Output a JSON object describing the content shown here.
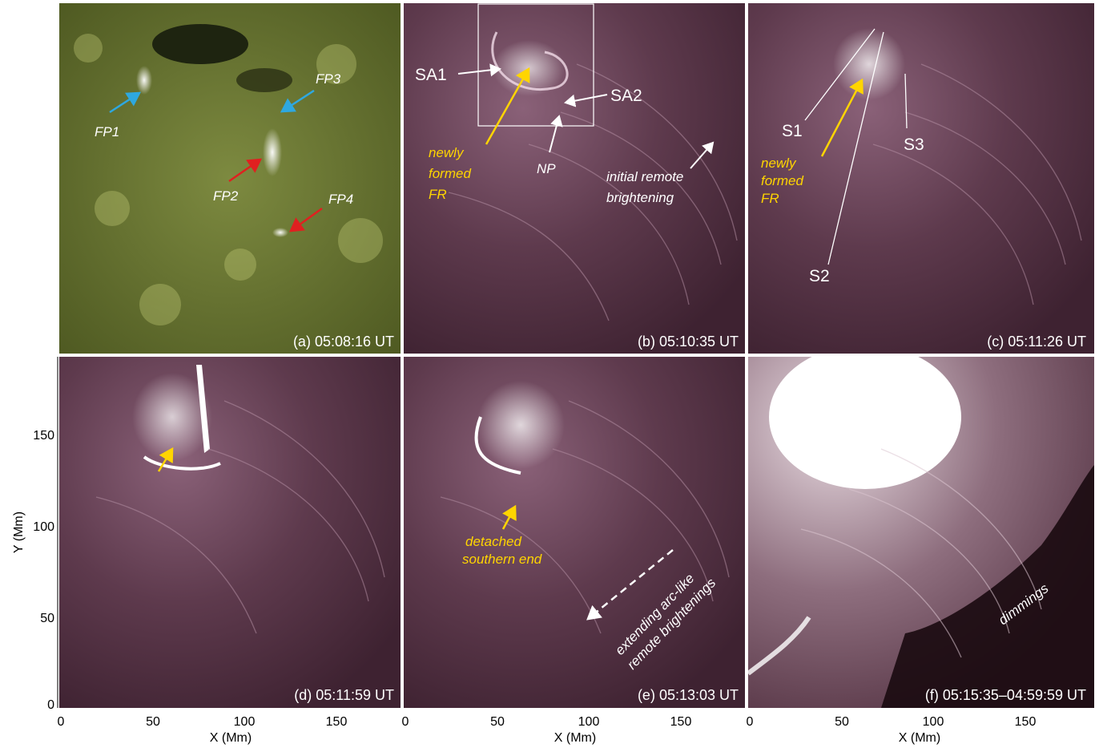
{
  "figure": {
    "panels": [
      {
        "id": "a",
        "title": "(a) 05:08:16 UT"
      },
      {
        "id": "b",
        "title": "(b) 05:10:35 UT"
      },
      {
        "id": "c",
        "title": "(c) 05:11:26 UT"
      },
      {
        "id": "d",
        "title": "(d) 05:11:59 UT"
      },
      {
        "id": "e",
        "title": "(e) 05:13:03 UT"
      },
      {
        "id": "f",
        "title": "(f) 05:15:35–04:59:59 UT"
      }
    ],
    "annotations": {
      "a": {
        "fp1": "FP1",
        "fp2": "FP2",
        "fp3": "FP3",
        "fp4": "FP4"
      },
      "b": {
        "sa1": "SA1",
        "sa2": "SA2",
        "np": "NP",
        "newly": "newly",
        "formed": "formed",
        "fr": "FR",
        "initial_remote": "initial remote",
        "brightening": "brightening"
      },
      "c": {
        "s1": "S1",
        "s2": "S2",
        "s3": "S3",
        "newly": "newly",
        "formed": "formed",
        "fr": "FR"
      },
      "e": {
        "detached": "detached",
        "southern_end": "southern end",
        "extending": "extending arc-like",
        "remote": "remote brightenings"
      },
      "f": {
        "dimmings": "dimmings"
      }
    },
    "axes": {
      "x_label": "X (Mm)",
      "y_label": "Y (Mm)",
      "x_ticks": [
        "0",
        "50",
        "100",
        "150"
      ],
      "y_ticks": [
        "0",
        "50",
        "100",
        "150"
      ]
    },
    "colors": {
      "aia1600": "#5e6a2a",
      "euv": "#5a3346",
      "arrow_blue": "#2ea8e0",
      "arrow_red": "#e02020",
      "arrow_yellow": "#ffd500"
    }
  }
}
